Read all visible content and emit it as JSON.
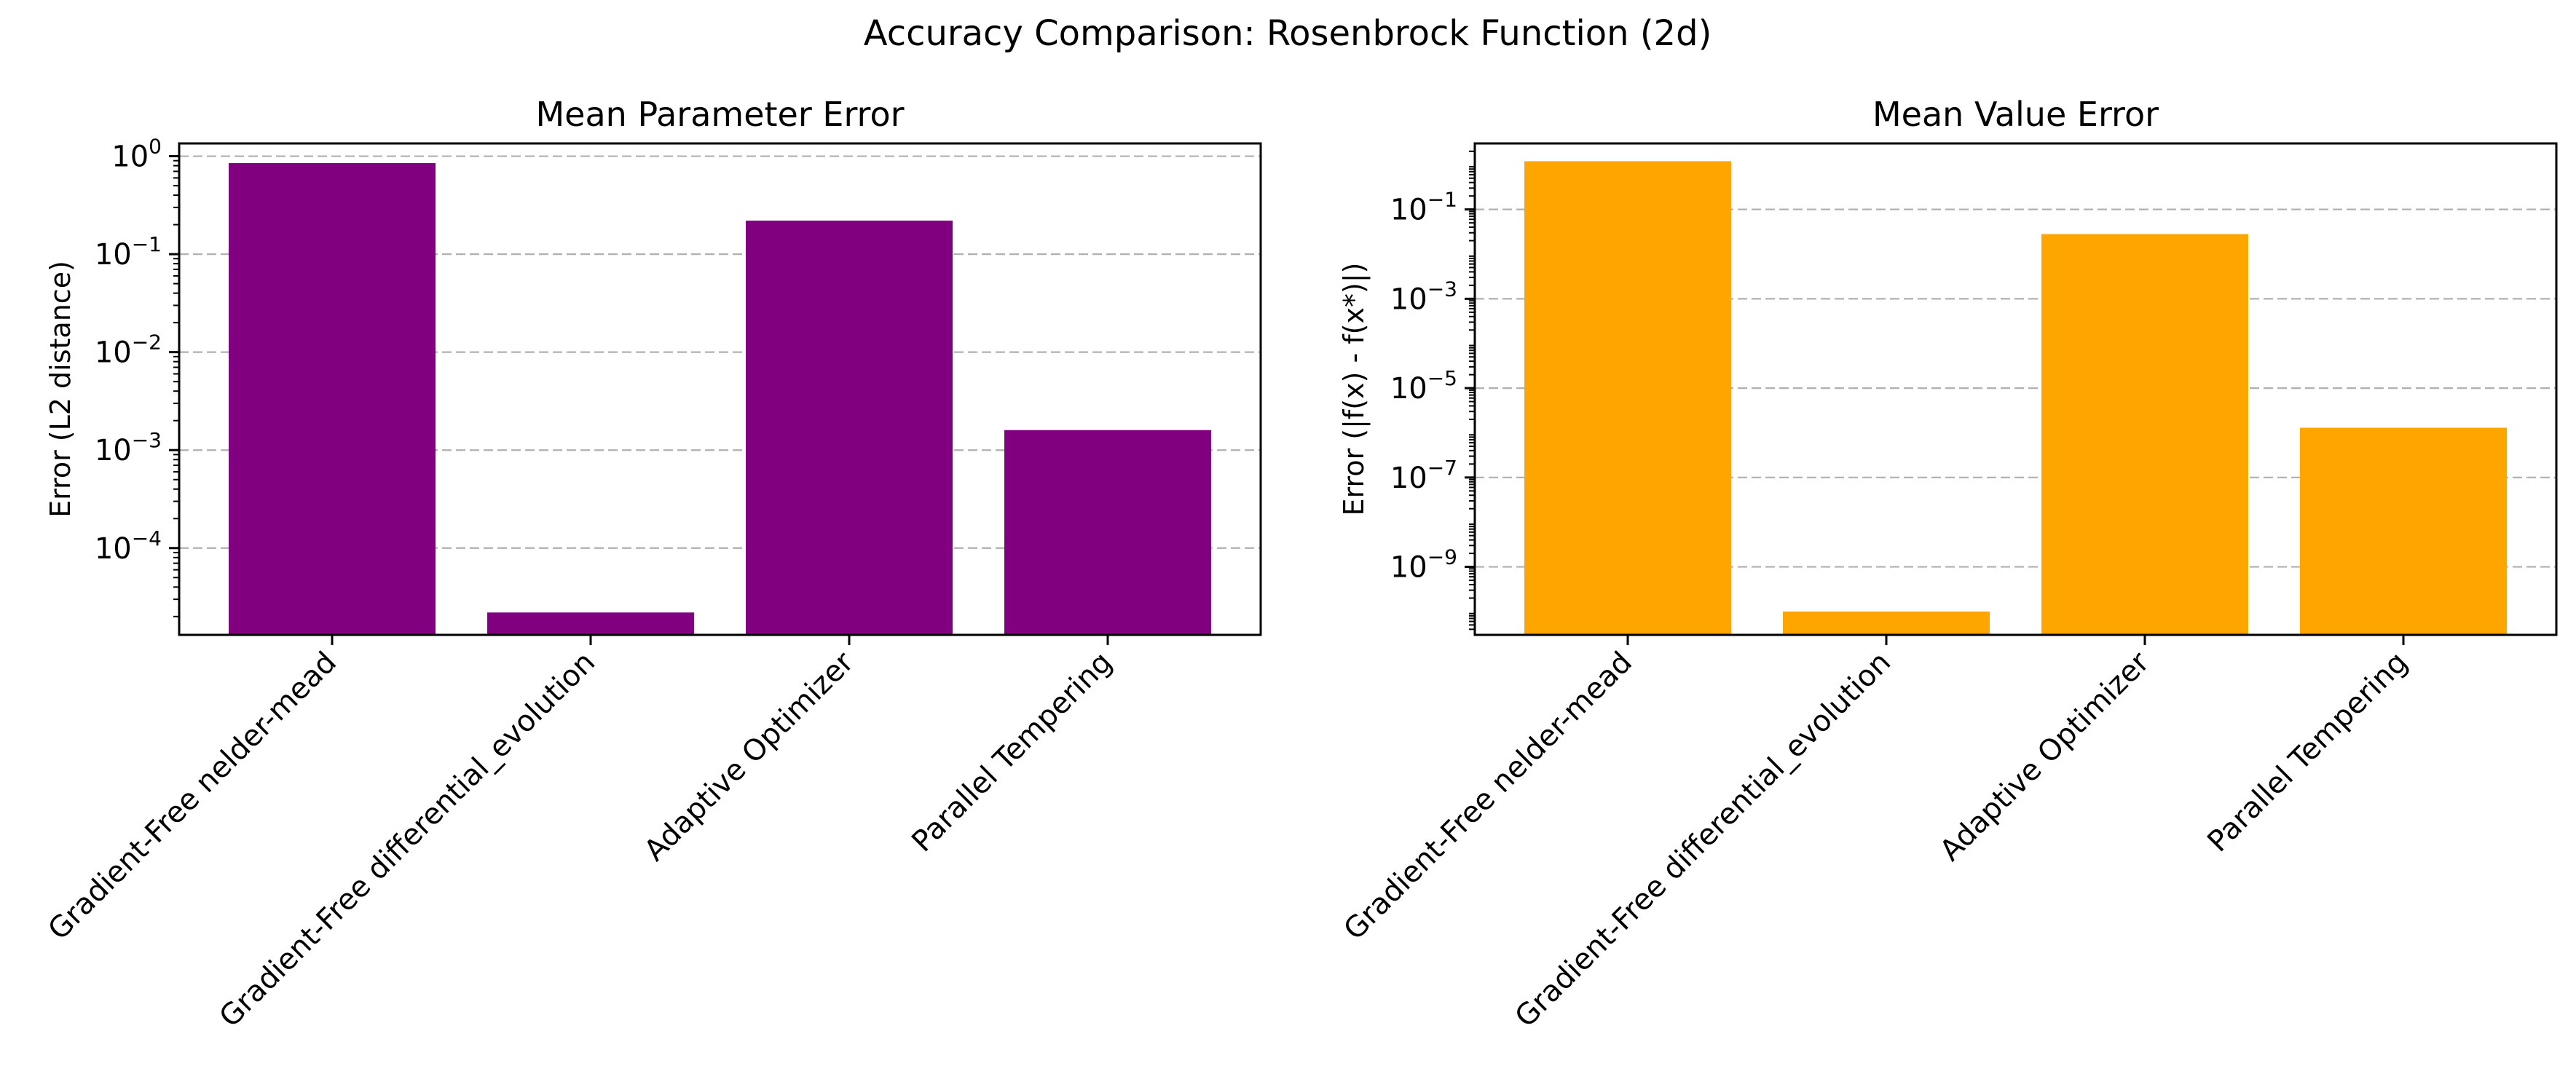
{
  "figure": {
    "title": "Accuracy Comparison: Rosenbrock Function (2d)"
  },
  "chart_data": [
    {
      "type": "bar",
      "title": "Mean Parameter Error",
      "xlabel": "",
      "ylabel": "Error (L2 distance)",
      "yscale": "log",
      "ylim": [
        1.3e-05,
        1.35
      ],
      "yticks": [
        {
          "value": 1,
          "base": "10",
          "exp": "0"
        },
        {
          "value": 0.1,
          "base": "10",
          "exp": "−1"
        },
        {
          "value": 0.01,
          "base": "10",
          "exp": "−2"
        },
        {
          "value": 0.001,
          "base": "10",
          "exp": "−3"
        },
        {
          "value": 0.0001,
          "base": "10",
          "exp": "−4"
        }
      ],
      "grid": "y-dashed",
      "color": "#800080",
      "categories": [
        "Gradient-Free nelder-mead",
        "Gradient-Free differential_evolution",
        "Adaptive Optimizer",
        "Parallel Tempering"
      ],
      "values": [
        0.85,
        2.2e-05,
        0.22,
        0.0016
      ]
    },
    {
      "type": "bar",
      "title": "Mean Value Error",
      "xlabel": "",
      "ylabel": "Error (|f(x) - f(x*)|)",
      "yscale": "log",
      "ylim": [
        3e-11,
        3.0
      ],
      "yticks": [
        {
          "value": 0.1,
          "base": "10",
          "exp": "−1"
        },
        {
          "value": 0.001,
          "base": "10",
          "exp": "−3"
        },
        {
          "value": 1e-05,
          "base": "10",
          "exp": "−5"
        },
        {
          "value": 1e-07,
          "base": "10",
          "exp": "−7"
        },
        {
          "value": 1e-09,
          "base": "10",
          "exp": "−9"
        }
      ],
      "grid": "y-dashed",
      "color": "#FFA500",
      "categories": [
        "Gradient-Free nelder-mead",
        "Gradient-Free differential_evolution",
        "Adaptive Optimizer",
        "Parallel Tempering"
      ],
      "values": [
        1.2,
        1e-10,
        0.028,
        1.3e-06
      ]
    }
  ]
}
